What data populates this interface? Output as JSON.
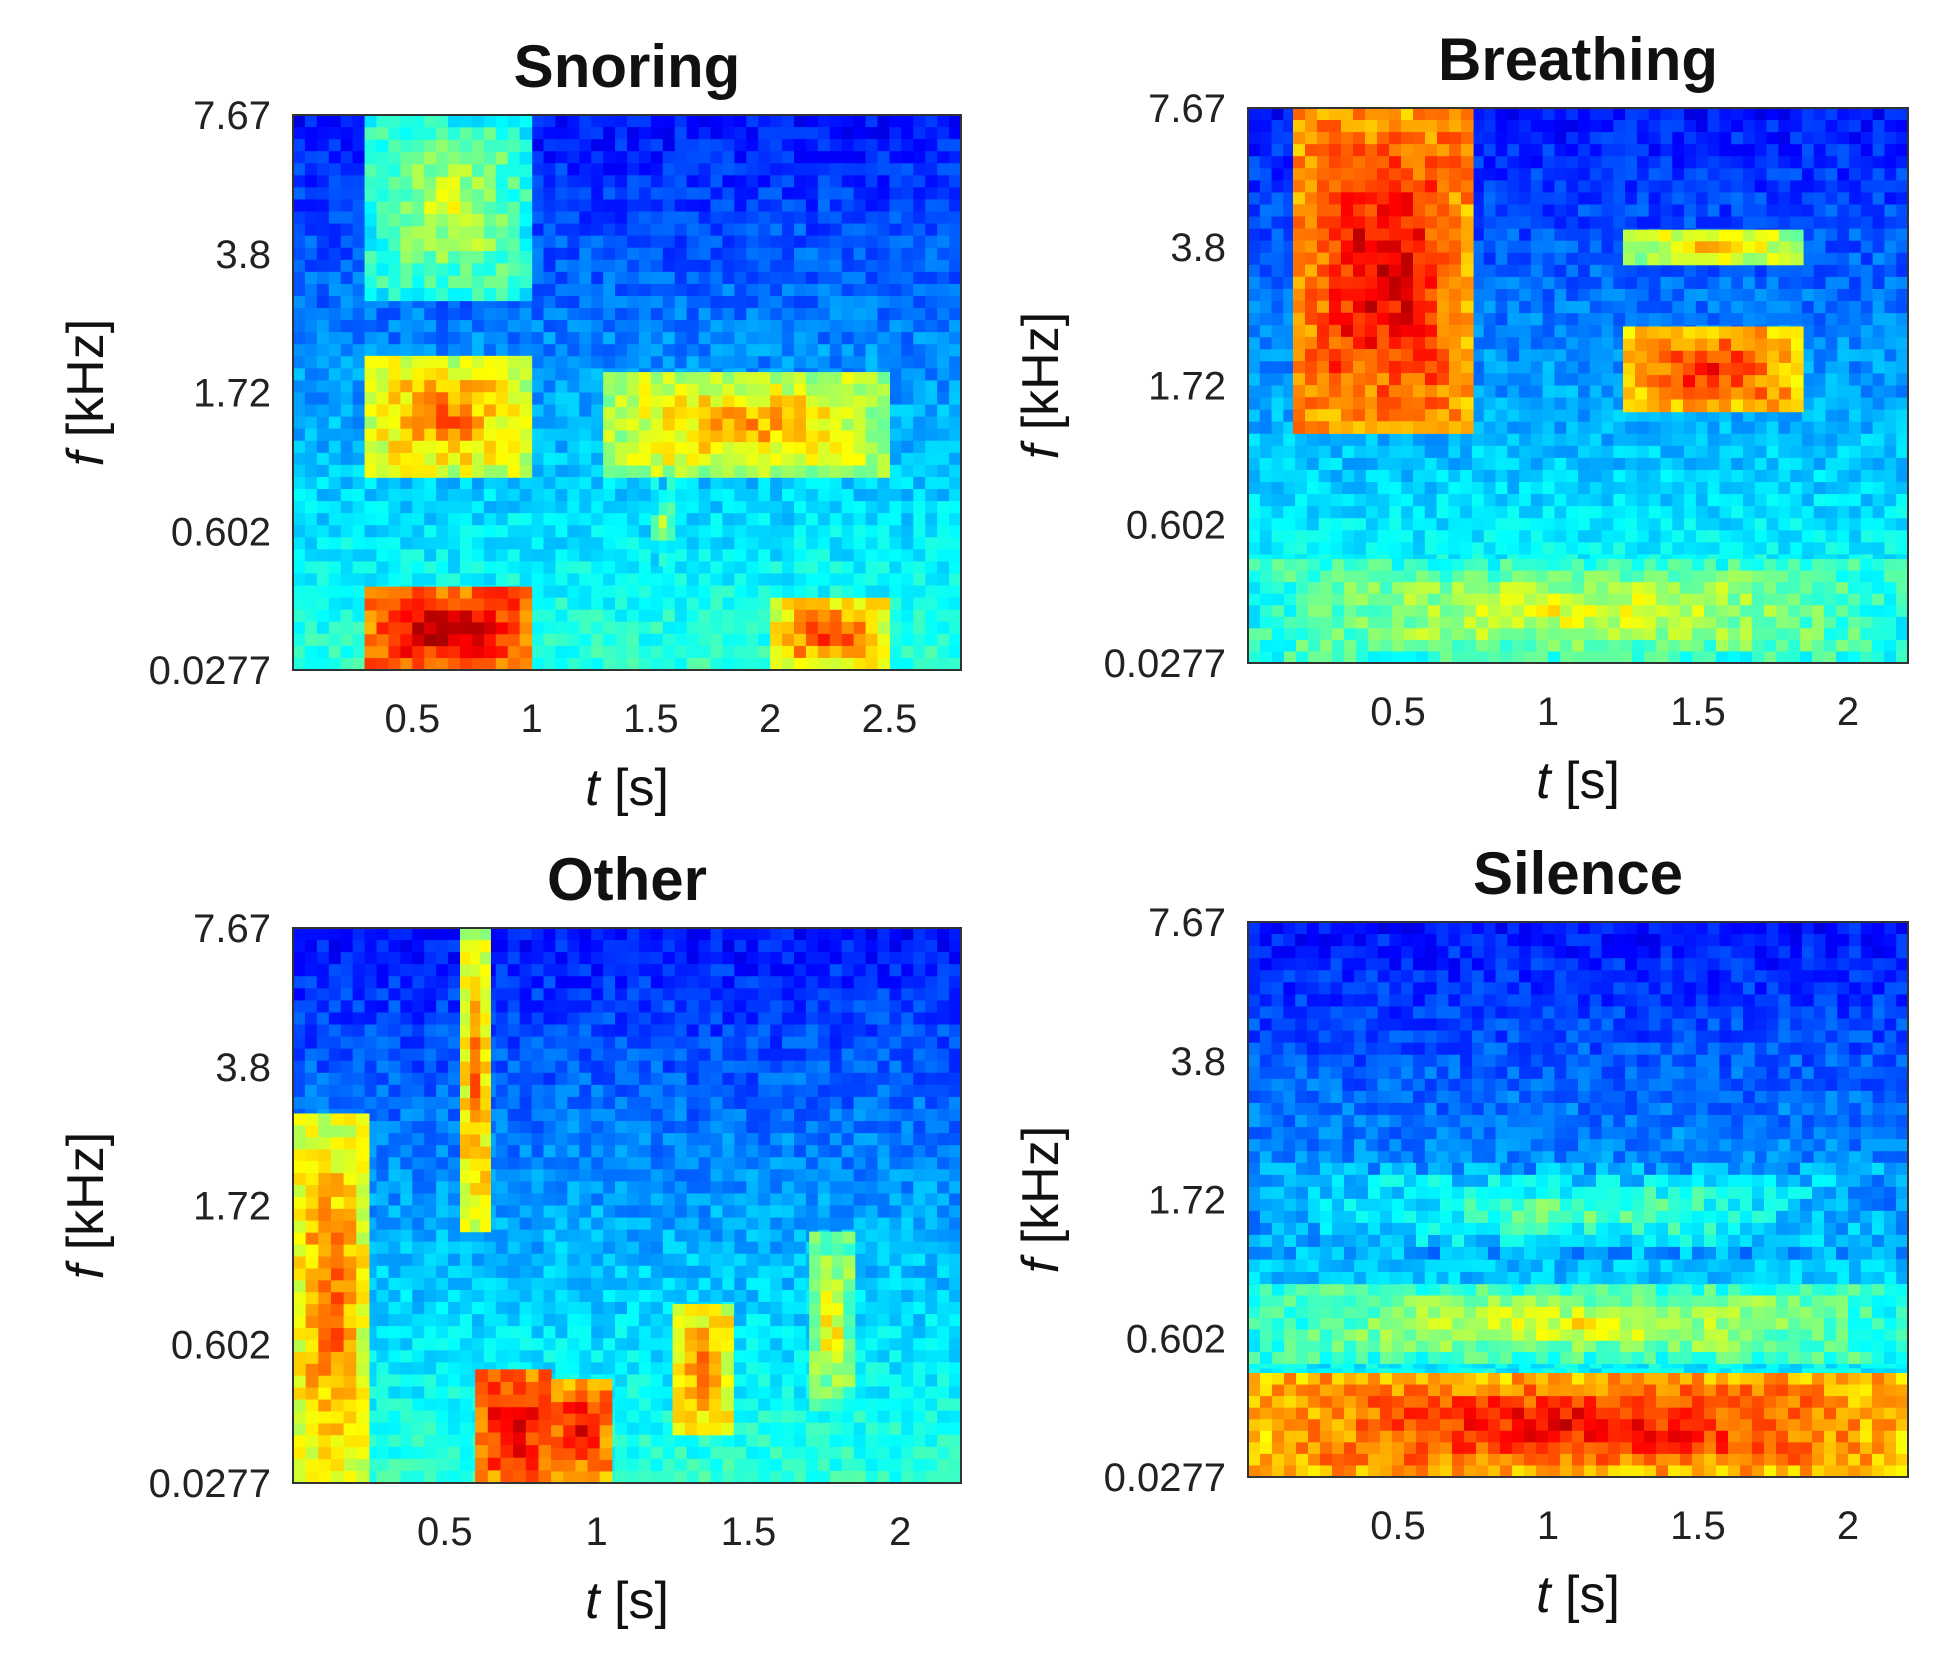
{
  "chart_data": [
    {
      "type": "heatmap",
      "title": "Snoring",
      "xlabel": "[s]",
      "xlabel_symbol": "t",
      "ylabel": "[kHz]",
      "ylabel_symbol": "f",
      "xlim": [
        0,
        2.8
      ],
      "xticks": [
        "0.5",
        "1",
        "1.5",
        "2",
        "2.5"
      ],
      "xtick_values": [
        0.5,
        1,
        1.5,
        2,
        2.5
      ],
      "yticks": [
        "7.67",
        "3.8",
        "1.72",
        "0.602",
        "0.0277"
      ],
      "y_scale": "mel",
      "colormap": "jet",
      "events": [
        {
          "t": [
            0.3,
            1.0
          ],
          "f": [
            1.0,
            2.2
          ],
          "level": 0.78
        },
        {
          "t": [
            0.3,
            1.0
          ],
          "f": [
            3.0,
            7.67
          ],
          "level": 0.6
        },
        {
          "t": [
            0.3,
            1.0
          ],
          "f": [
            0.0277,
            0.35
          ],
          "level": 0.97
        },
        {
          "t": [
            1.3,
            2.5
          ],
          "f": [
            1.0,
            2.0
          ],
          "level": 0.74
        },
        {
          "t": [
            1.5,
            1.6
          ],
          "f": [
            0.45,
            1.0
          ],
          "level": 0.55
        },
        {
          "t": [
            2.0,
            2.5
          ],
          "f": [
            0.0277,
            0.3
          ],
          "level": 0.82
        }
      ]
    },
    {
      "type": "heatmap",
      "title": "Breathing",
      "xlabel": "[s]",
      "xlabel_symbol": "t",
      "ylabel": "[kHz]",
      "ylabel_symbol": "f",
      "xlim": [
        0,
        2.2
      ],
      "xticks": [
        "0.5",
        "1",
        "1.5",
        "2"
      ],
      "xtick_values": [
        0.5,
        1,
        1.5,
        2
      ],
      "yticks": [
        "7.67",
        "3.8",
        "1.72",
        "0.602",
        "0.0277"
      ],
      "y_scale": "mel",
      "colormap": "jet",
      "events": [
        {
          "t": [
            0.15,
            0.75
          ],
          "f": [
            1.3,
            7.67
          ],
          "level": 0.93
        },
        {
          "t": [
            1.25,
            1.85
          ],
          "f": [
            1.5,
            2.5
          ],
          "level": 0.88
        },
        {
          "t": [
            1.25,
            1.85
          ],
          "f": [
            3.5,
            4.2
          ],
          "level": 0.72
        },
        {
          "t": [
            0.0,
            2.2
          ],
          "f": [
            0.0277,
            0.45
          ],
          "level": 0.62
        }
      ]
    },
    {
      "type": "heatmap",
      "title": "Other",
      "xlabel": "[s]",
      "xlabel_symbol": "t",
      "ylabel": "[kHz]",
      "ylabel_symbol": "f",
      "xlim": [
        0,
        2.2
      ],
      "xticks": [
        "0.5",
        "1",
        "1.5",
        "2"
      ],
      "xtick_values": [
        0.5,
        1,
        1.5,
        2
      ],
      "yticks": [
        "7.67",
        "3.8",
        "1.72",
        "0.602",
        "0.0277"
      ],
      "y_scale": "mel",
      "colormap": "jet",
      "events": [
        {
          "t": [
            0.0,
            0.25
          ],
          "f": [
            0.0277,
            3.0
          ],
          "level": 0.8
        },
        {
          "t": [
            0.55,
            0.65
          ],
          "f": [
            1.5,
            7.67
          ],
          "level": 0.78
        },
        {
          "t": [
            0.6,
            0.85
          ],
          "f": [
            0.0277,
            0.5
          ],
          "level": 0.95
        },
        {
          "t": [
            0.85,
            1.05
          ],
          "f": [
            0.0277,
            0.45
          ],
          "level": 0.92
        },
        {
          "t": [
            1.25,
            1.45
          ],
          "f": [
            0.2,
            0.9
          ],
          "level": 0.8
        },
        {
          "t": [
            1.7,
            1.85
          ],
          "f": [
            0.3,
            1.5
          ],
          "level": 0.66
        }
      ]
    },
    {
      "type": "heatmap",
      "title": "Silence",
      "xlabel": "[s]",
      "xlabel_symbol": "t",
      "ylabel": "[kHz]",
      "ylabel_symbol": "f",
      "xlim": [
        0,
        2.2
      ],
      "xticks": [
        "0.5",
        "1",
        "1.5",
        "2"
      ],
      "xtick_values": [
        0.5,
        1,
        1.5,
        2
      ],
      "yticks": [
        "7.67",
        "3.8",
        "1.72",
        "0.602",
        "0.0277"
      ],
      "y_scale": "mel",
      "colormap": "jet",
      "events": [
        {
          "t": [
            0.0,
            2.2
          ],
          "f": [
            0.0277,
            0.45
          ],
          "level": 0.9
        },
        {
          "t": [
            0.0,
            2.2
          ],
          "f": [
            0.5,
            1.0
          ],
          "level": 0.62
        },
        {
          "t": [
            0.0,
            2.2
          ],
          "f": [
            1.2,
            2.2
          ],
          "level": 0.48
        }
      ]
    }
  ]
}
